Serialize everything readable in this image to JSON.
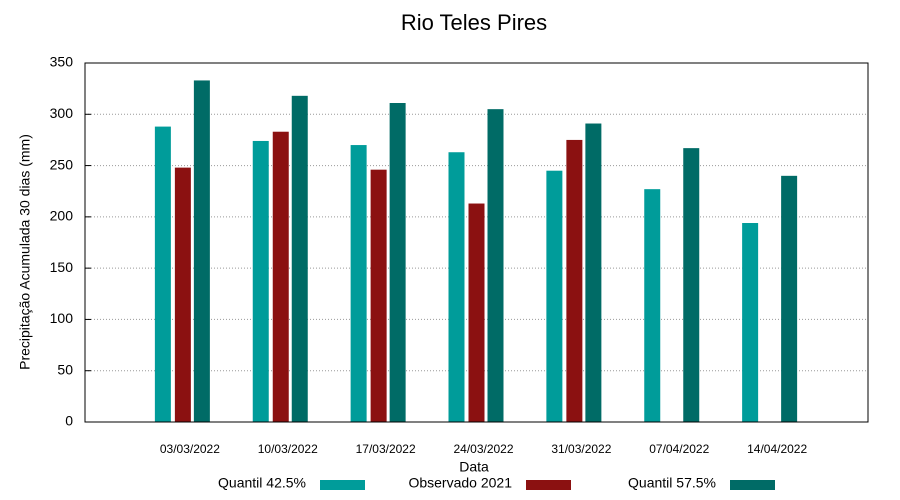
{
  "chart_data": {
    "type": "bar",
    "title": "Rio Teles Pires",
    "x_label": "Data",
    "y_label": "Precipitação Acumulada 30 dias (mm)",
    "categories": [
      "03/03/2022",
      "10/03/2022",
      "17/03/2022",
      "24/03/2022",
      "31/03/2022",
      "07/04/2022",
      "14/04/2022"
    ],
    "series": [
      {
        "name": "Quantil 42.5%",
        "color": "#009c9a",
        "values": [
          288,
          274,
          270,
          263,
          245,
          227,
          194
        ]
      },
      {
        "name": "Observado 2021",
        "color": "#8b1111",
        "values": [
          248,
          283,
          246,
          213,
          275,
          null,
          null
        ]
      },
      {
        "name": "Quantil 57.5%",
        "color": "#006b66",
        "values": [
          333,
          318,
          311,
          305,
          291,
          267,
          240
        ]
      }
    ],
    "ylim": [
      0,
      350
    ],
    "yticks": [
      0,
      50,
      100,
      150,
      200,
      250,
      300,
      350
    ],
    "grid": true
  }
}
